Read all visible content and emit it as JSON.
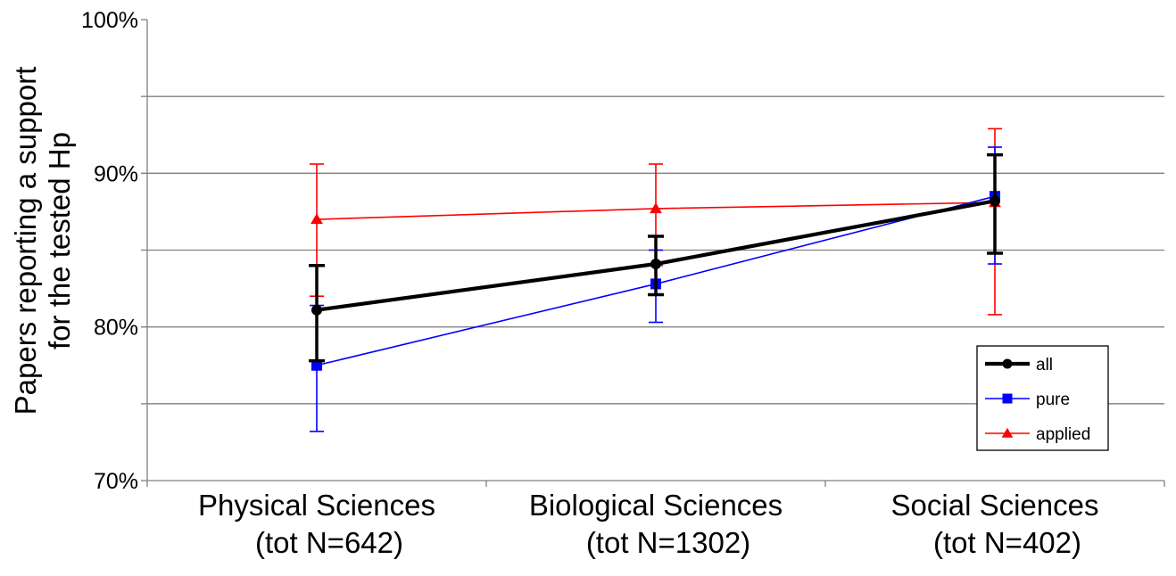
{
  "chart_data": {
    "type": "line",
    "categories": [
      "Physical Sciences",
      "Biological Sciences",
      "Social Sciences"
    ],
    "category_sublabels": [
      "(tot N=642)",
      "(tot N=1302)",
      "(tot N=402)"
    ],
    "ylabel_lines": [
      "Papers reporting a support",
      "for the tested Hp"
    ],
    "ylim": [
      0.7,
      1.0
    ],
    "yticks": [
      {
        "value": 0.7,
        "label": "70%"
      },
      {
        "value": 0.8,
        "label": "80%"
      },
      {
        "value": 0.9,
        "label": "90%"
      },
      {
        "value": 1.0,
        "label": "100%"
      }
    ],
    "gridlines": [
      0.75,
      0.8,
      0.85,
      0.9,
      0.95
    ],
    "legend_position": "right",
    "series": [
      {
        "name": "all",
        "color": "#000000",
        "marker": "circle",
        "values": [
          0.811,
          0.841,
          0.882
        ],
        "err_low": [
          0.778,
          0.821,
          0.848
        ],
        "err_high": [
          0.84,
          0.859,
          0.912
        ]
      },
      {
        "name": "pure",
        "color": "#0000ff",
        "marker": "square",
        "values": [
          0.775,
          0.828,
          0.885
        ],
        "err_low": [
          0.732,
          0.803,
          0.841
        ],
        "err_high": [
          0.814,
          0.85,
          0.917
        ]
      },
      {
        "name": "applied",
        "color": "#ff0000",
        "marker": "triangle",
        "values": [
          0.87,
          0.877,
          0.881
        ],
        "err_low": [
          0.82,
          0.84,
          0.808
        ],
        "err_high": [
          0.906,
          0.906,
          0.929
        ]
      }
    ]
  }
}
